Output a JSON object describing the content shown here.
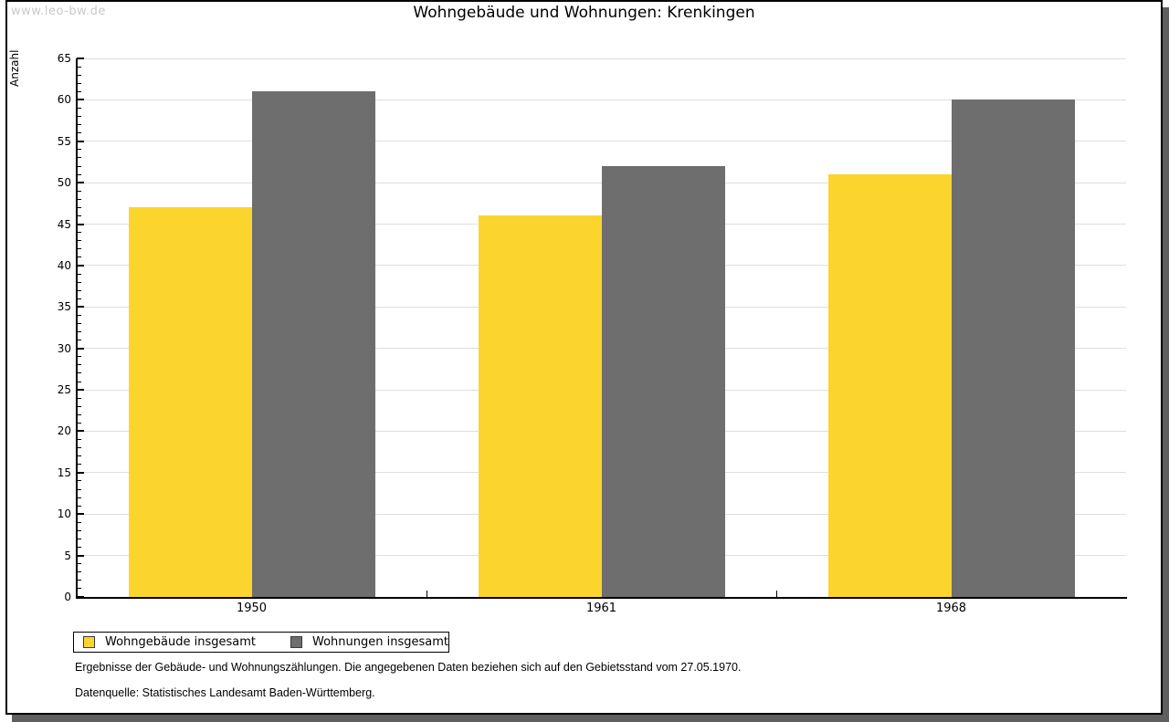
{
  "watermark": "www.leo-bw.de",
  "title": "Wohngebäude und Wohnungen: Krenkingen",
  "chart_data": {
    "type": "bar",
    "title": "Wohngebäude und Wohnungen: Krenkingen",
    "xlabel": "",
    "ylabel": "Anzahl",
    "categories": [
      "1950",
      "1961",
      "1968"
    ],
    "series": [
      {
        "name": "Wohngebäude insgesamt",
        "color": "#fcd42e",
        "values": [
          47,
          46,
          51
        ]
      },
      {
        "name": "Wohnungen insgesamt",
        "color": "#6e6e6e",
        "values": [
          61,
          52,
          60
        ]
      }
    ],
    "ylim": [
      0,
      65
    ],
    "ytick_step": 5,
    "minor_tick_step": 1,
    "grid": true,
    "legend_position": "bottom-left"
  },
  "footnotes": [
    "Ergebnisse der Gebäude- und Wohnungszählungen. Die angegebenen Daten beziehen sich auf den Gebietsstand vom 27.05.1970.",
    "Datenquelle: Statistisches Landesamt Baden-Württemberg."
  ],
  "colors": {
    "series1": "#fcd42e",
    "series2": "#6e6e6e",
    "gridline": "#dedede",
    "axis": "#000000",
    "watermark": "#c9c9c9",
    "shadow": "#5f5f5f"
  }
}
